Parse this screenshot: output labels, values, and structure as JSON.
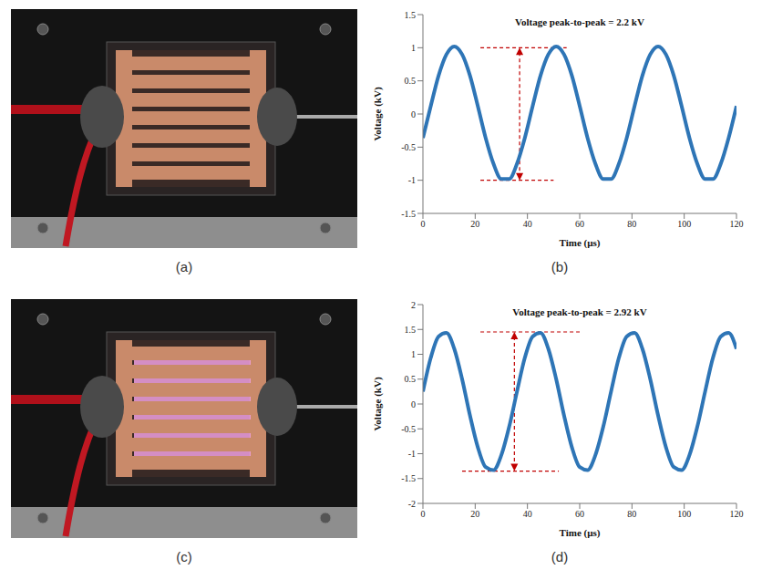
{
  "chart_data": [
    {
      "label": "(b)",
      "type": "line",
      "annotation": "Voltage peak-to-peak = 2.2 kV",
      "x_label": "Time (µs)",
      "y_label": "Voltage (kV)",
      "x": [
        0,
        3,
        6,
        9,
        12,
        15,
        18,
        21,
        24,
        27,
        30,
        33,
        36,
        39,
        42,
        45,
        48,
        51,
        54,
        57,
        60,
        63,
        66,
        69,
        72,
        75,
        78,
        81,
        84,
        87,
        90,
        93,
        96,
        99,
        102,
        105,
        108,
        111,
        114,
        117,
        120
      ],
      "values": [
        -0.36,
        0.12,
        0.58,
        0.9,
        1.02,
        0.9,
        0.58,
        0.12,
        -0.36,
        -0.75,
        -0.98,
        -0.98,
        -0.75,
        -0.36,
        0.12,
        0.58,
        0.9,
        1.02,
        0.9,
        0.58,
        0.12,
        -0.36,
        -0.75,
        -0.98,
        -0.98,
        -0.75,
        -0.36,
        0.12,
        0.58,
        0.9,
        1.02,
        0.9,
        0.58,
        0.12,
        -0.36,
        -0.75,
        -0.98,
        -0.98,
        -0.75,
        -0.36,
        0.12
      ],
      "color": "#2e75b6",
      "xlim": [
        0,
        120
      ],
      "xticks": [
        0,
        20,
        40,
        60,
        80,
        100,
        120
      ],
      "ylim": [
        -1.5,
        1.5
      ],
      "yticks": [
        -1.5,
        -1,
        -0.5,
        0,
        0.5,
        1,
        1.5
      ],
      "grid": false,
      "reference_lines": [
        {
          "y": 1,
          "x_range": [
            22,
            55
          ]
        },
        {
          "y": -1,
          "x_range": [
            22,
            50
          ]
        }
      ],
      "arrow_x": 37
    },
    {
      "label": "(d)",
      "type": "line",
      "annotation": "Voltage peak-to-peak = 2.92 kV",
      "x_label": "Time (µs)",
      "y_label": "Voltage (kV)",
      "x": [
        0,
        3,
        6,
        9,
        12,
        15,
        18,
        21,
        24,
        27,
        30,
        33,
        36,
        39,
        42,
        45,
        48,
        51,
        54,
        57,
        60,
        63,
        66,
        69,
        72,
        75,
        78,
        81,
        84,
        87,
        90,
        93,
        96,
        99,
        102,
        105,
        108,
        111,
        114,
        117,
        120
      ],
      "values": [
        0.25,
        0.93,
        1.36,
        1.43,
        1.11,
        0.5,
        -0.23,
        -0.87,
        -1.27,
        -1.33,
        -1.03,
        -0.46,
        0.25,
        0.93,
        1.36,
        1.43,
        1.11,
        0.5,
        -0.23,
        -0.87,
        -1.27,
        -1.33,
        -1.03,
        -0.46,
        0.25,
        0.93,
        1.36,
        1.43,
        1.11,
        0.5,
        -0.23,
        -0.87,
        -1.27,
        -1.33,
        -1.03,
        -0.46,
        0.25,
        0.93,
        1.36,
        1.43,
        1.11
      ],
      "color": "#2e75b6",
      "xlim": [
        0,
        120
      ],
      "xticks": [
        0,
        20,
        40,
        60,
        80,
        100,
        120
      ],
      "ylim": [
        -2,
        2
      ],
      "yticks": [
        -2,
        -1.5,
        -1,
        -0.5,
        0,
        0.5,
        1,
        1.5,
        2
      ],
      "grid": false,
      "reference_lines": [
        {
          "y": 1.45,
          "x_range": [
            22,
            60
          ]
        },
        {
          "y": -1.35,
          "x_range": [
            15,
            52
          ]
        }
      ],
      "arrow_x": 35
    }
  ],
  "photos": [
    {
      "label": "(a)"
    },
    {
      "label": "(c)"
    }
  ]
}
